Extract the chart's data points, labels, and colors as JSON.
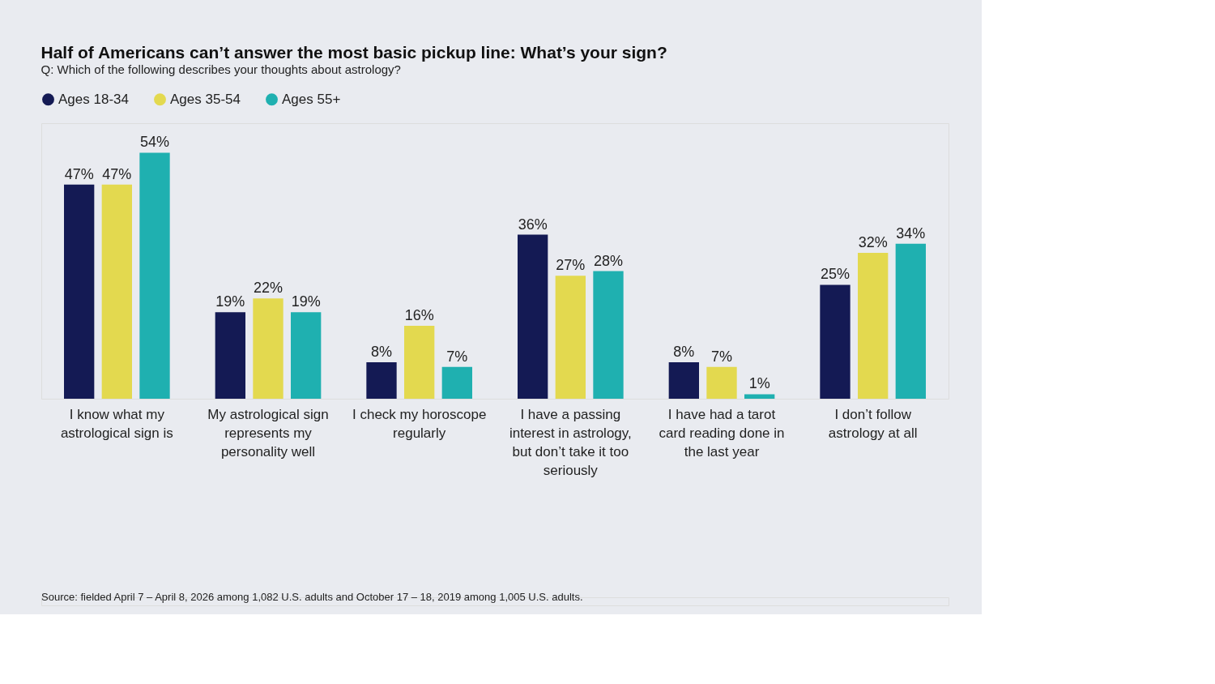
{
  "chart_data": {
    "type": "bar",
    "title": "Half of Americans can’t answer the most basic pickup line: What’s your sign?",
    "subtitle": "Q: Which of the following describes your thoughts about astrology?",
    "categories": [
      "I know what my astrological sign is",
      "My astrological sign represents my personality well",
      "I check my horoscope regularly",
      "I have a passing interest in astrology, but don’t take it too seriously",
      "I have had a tarot card reading done in the last year",
      "I don’t follow astrology at all"
    ],
    "series": [
      {
        "name": "Ages 18-34",
        "color": "#141a54",
        "values": [
          47,
          19,
          8,
          36,
          8,
          25
        ],
        "value_labels": [
          "47%",
          "19%",
          "8%",
          "36%",
          "8%",
          "25%"
        ]
      },
      {
        "name": "Ages 35-54",
        "color": "#e3d94f",
        "values": [
          47,
          22,
          16,
          27,
          7,
          32
        ],
        "value_labels": [
          "47%",
          "22%",
          "16%",
          "27%",
          "7%",
          "32%"
        ]
      },
      {
        "name": "Ages 55+",
        "color": "#1fb0b0",
        "values": [
          54,
          19,
          7,
          28,
          1,
          34
        ],
        "value_labels": [
          "54%",
          "19%",
          "7%",
          "28%",
          "1%",
          "34%"
        ]
      }
    ],
    "legend": "top left",
    "grid": false,
    "annotations": [
      "Source: fielded April 7 – April 8, 2026 among 1,082 U.S. adults and October 17 – 18, 2019 among 1,005 U.S. adults."
    ]
  }
}
